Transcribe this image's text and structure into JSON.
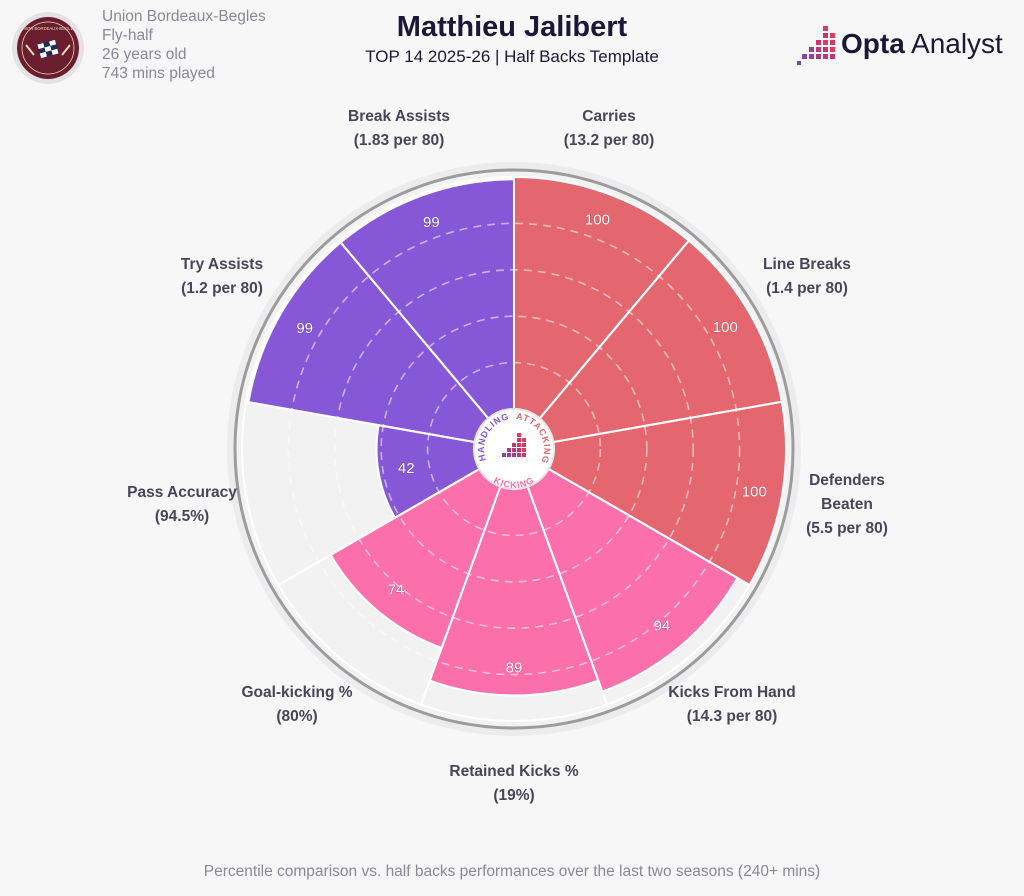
{
  "player": {
    "club": "Union Bordeaux-Begles",
    "position": "Fly-half",
    "age": "26 years old",
    "minutes": "743 mins played",
    "name": "Matthieu Jalibert"
  },
  "subtitle": "TOP 14 2025-26 | Half Backs Template",
  "brand": {
    "strong": "Opta",
    "light": " Analyst"
  },
  "footnote": "Percentile comparison vs. half backs performances over the last two seasons (240+ mins)",
  "club_logo_text": "UNION BORDEAUX-BEGLES",
  "colors": {
    "attacking": "#e4676f",
    "handling": "#8657d6",
    "kicking": "#fb6faa",
    "empty": "#f2f2f2",
    "label": "#4a4458"
  },
  "chart_data": {
    "type": "radar",
    "value_range": [
      0,
      100
    ],
    "groups": [
      {
        "name": "ATTACKING",
        "color": "#e4676f"
      },
      {
        "name": "KICKING",
        "color": "#fb6faa"
      },
      {
        "name": "HANDLING",
        "color": "#8657d6"
      }
    ],
    "metrics": [
      {
        "name": "Carries",
        "value_text": "(13.2 per 80)",
        "percentile": 100,
        "group": "ATTACKING"
      },
      {
        "name": "Line Breaks",
        "value_text": "(1.4 per 80)",
        "percentile": 100,
        "group": "ATTACKING"
      },
      {
        "name": "Defenders Beaten",
        "value_text": "(5.5 per 80)",
        "percentile": 100,
        "group": "ATTACKING"
      },
      {
        "name": "Kicks From Hand",
        "value_text": "(14.3 per 80)",
        "percentile": 94,
        "group": "KICKING"
      },
      {
        "name": "Retained Kicks %",
        "value_text": "(19%)",
        "percentile": 89,
        "group": "KICKING"
      },
      {
        "name": "Goal-kicking %",
        "value_text": "(80%)",
        "percentile": 74,
        "group": "KICKING"
      },
      {
        "name": "Pass Accuracy",
        "value_text": "(94.5%)",
        "percentile": 42,
        "group": "HANDLING"
      },
      {
        "name": "Try Assists",
        "value_text": "(1.2 per 80)",
        "percentile": 99,
        "group": "HANDLING"
      },
      {
        "name": "Break Assists",
        "value_text": "(1.83 per 80)",
        "percentile": 99,
        "group": "HANDLING"
      }
    ]
  }
}
